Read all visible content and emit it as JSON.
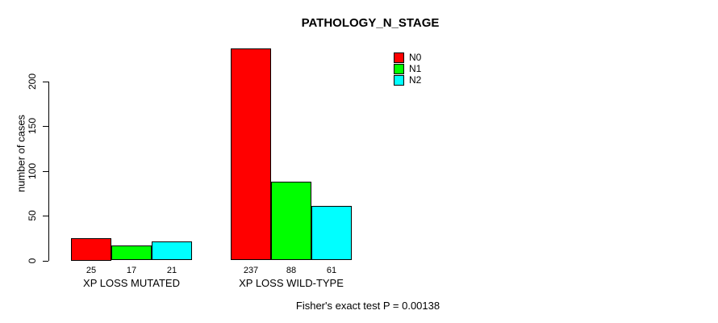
{
  "chart_data": {
    "type": "bar",
    "title": "PATHOLOGY_N_STAGE",
    "ylabel": "number of cases",
    "xlabel": "",
    "categories": [
      "XP LOSS MUTATED",
      "XP LOSS WILD-TYPE"
    ],
    "series": [
      {
        "name": "N0",
        "color": "#FF0000",
        "values": [
          25,
          237
        ]
      },
      {
        "name": "N1",
        "color": "#00FF00",
        "values": [
          17,
          88
        ]
      },
      {
        "name": "N2",
        "color": "#00FFFF",
        "values": [
          21,
          61
        ]
      }
    ],
    "bar_value_labels": [
      [
        25,
        17,
        21
      ],
      [
        237,
        88,
        61
      ]
    ],
    "yticks": [
      0,
      50,
      100,
      150,
      200
    ],
    "ylim": [
      0,
      245
    ],
    "grid": false,
    "legend_position": "top-right",
    "legend_entries": [
      "N0",
      "N1",
      "N2"
    ],
    "annotation": "Fisher's exact test P = 0.00138"
  }
}
